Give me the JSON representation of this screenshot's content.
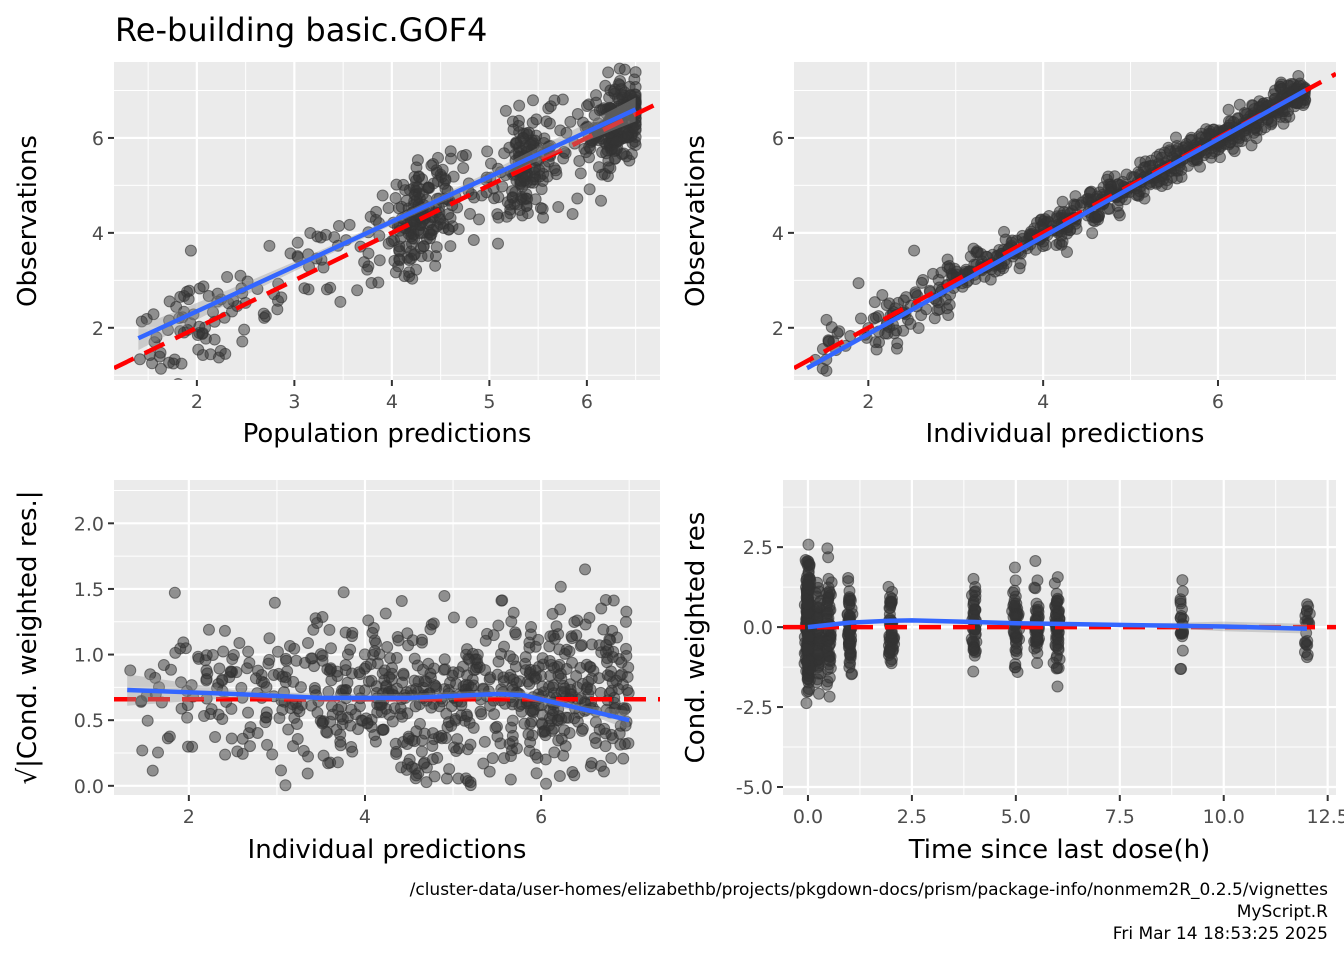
{
  "title": "Re-building basic.GOF4",
  "footer": {
    "path": "/cluster-data/user-homes/elizabethb/projects/pkgdown-docs/prism/package-info/nonmem2R_0.2.5/vignettes",
    "script": "MyScript.R",
    "timestamp": "Fri Mar 14 18:53:25 2025"
  },
  "colors": {
    "panel_bg": "#ebebeb",
    "grid": "#ffffff",
    "points": "#333333",
    "smooth": "#3366ff",
    "reference": "#ff0000",
    "ci_band": "#999999"
  },
  "chart_data": [
    {
      "type": "scatter",
      "id": "pred-vs-obs",
      "xlabel": "Population predictions",
      "ylabel": "Observations",
      "xlim": [
        1.15,
        6.75
      ],
      "ylim": [
        0.9,
        7.6
      ],
      "xticks": [
        2,
        3,
        4,
        5,
        6
      ],
      "xtick_labels": [
        "2",
        "3",
        "4",
        "5",
        "6"
      ],
      "yticks": [
        2,
        4,
        6
      ],
      "ytick_labels": [
        "2",
        "4",
        "6"
      ],
      "reference_line": {
        "type": "identity",
        "slope": 1,
        "intercept": 0
      },
      "smooth": {
        "method": "linear",
        "x": [
          1.4,
          6.5
        ],
        "y": [
          1.78,
          6.6
        ],
        "ci_halfwidth_ends": 0.25
      },
      "points": {
        "n": 700,
        "x_range": [
          1.4,
          6.5
        ],
        "noise_sd": 0.55,
        "clusters_x": [
          4.3,
          5.4,
          6.3
        ],
        "note": "scatter around y=x"
      }
    },
    {
      "type": "scatter",
      "id": "ipred-vs-obs",
      "xlabel": "Individual predictions",
      "ylabel": "Observations",
      "xlim": [
        1.15,
        7.35
      ],
      "ylim": [
        0.9,
        7.6
      ],
      "xticks": [
        2,
        4,
        6
      ],
      "xtick_labels": [
        "2",
        "4",
        "6"
      ],
      "yticks": [
        2,
        4,
        6
      ],
      "ytick_labels": [
        "2",
        "4",
        "6"
      ],
      "reference_line": {
        "type": "identity",
        "slope": 1,
        "intercept": 0
      },
      "smooth": {
        "method": "linear",
        "x": [
          1.3,
          7.0
        ],
        "y": [
          1.15,
          7.0
        ],
        "ci_halfwidth_ends": 0.05
      },
      "points": {
        "n": 750,
        "x_range": [
          1.3,
          7.0
        ],
        "noise_sd": 0.18,
        "note": "tight scatter around y=x"
      }
    },
    {
      "type": "scatter",
      "id": "ipred-vs-sqrt-abs-cwres",
      "xlabel": "Individual predictions",
      "ylabel": "√|Cond. weighted res.|",
      "xlim": [
        1.15,
        7.35
      ],
      "ylim": [
        -0.07,
        2.33
      ],
      "xticks": [
        2,
        4,
        6
      ],
      "xtick_labels": [
        "2",
        "4",
        "6"
      ],
      "yticks": [
        0.0,
        0.5,
        1.0,
        1.5,
        2.0
      ],
      "ytick_labels": [
        "0.0",
        "0.5",
        "1.0",
        "1.5",
        "2.0"
      ],
      "reference_line": {
        "type": "horizontal",
        "y": 0.66
      },
      "smooth": {
        "method": "loess",
        "x": [
          1.3,
          2.5,
          3.5,
          4.5,
          5.5,
          5.8,
          6.5,
          7.0
        ],
        "y": [
          0.73,
          0.7,
          0.67,
          0.67,
          0.7,
          0.69,
          0.58,
          0.5
        ]
      },
      "points": {
        "n": 750,
        "x_range": [
          1.3,
          7.0
        ],
        "y_range": [
          0.02,
          2.23
        ],
        "note": "spread around 0.66"
      }
    },
    {
      "type": "scatter",
      "id": "tad-vs-cwres",
      "xlabel": "Time since last dose(h)",
      "ylabel": "Cond. weighted res",
      "xlim": [
        -0.6,
        12.7
      ],
      "ylim": [
        -5.25,
        4.6
      ],
      "xticks": [
        0.0,
        2.5,
        5.0,
        7.5,
        10.0,
        12.5
      ],
      "xtick_labels": [
        "0.0",
        "2.5",
        "5.0",
        "7.5",
        "10.0",
        "12.5"
      ],
      "yticks": [
        -5.0,
        -2.5,
        0.0,
        2.5
      ],
      "ytick_labels": [
        "-5.0",
        "-2.5",
        "0.0",
        "2.5"
      ],
      "reference_line": {
        "type": "horizontal",
        "y": 0
      },
      "smooth": {
        "method": "loess",
        "x": [
          0,
          1,
          2,
          2.5,
          4,
          5,
          6,
          8,
          10,
          12
        ],
        "y": [
          0,
          0.14,
          0.2,
          0.21,
          0.16,
          0.12,
          0.1,
          0.06,
          0.02,
          -0.05
        ]
      },
      "points": {
        "n": 700,
        "time_groups": [
          0,
          0.25,
          0.5,
          1,
          2,
          4,
          5,
          5.5,
          6,
          9,
          12
        ],
        "y_range": [
          -4.9,
          4.1
        ],
        "note": "vertical strips at nominal times"
      }
    }
  ]
}
